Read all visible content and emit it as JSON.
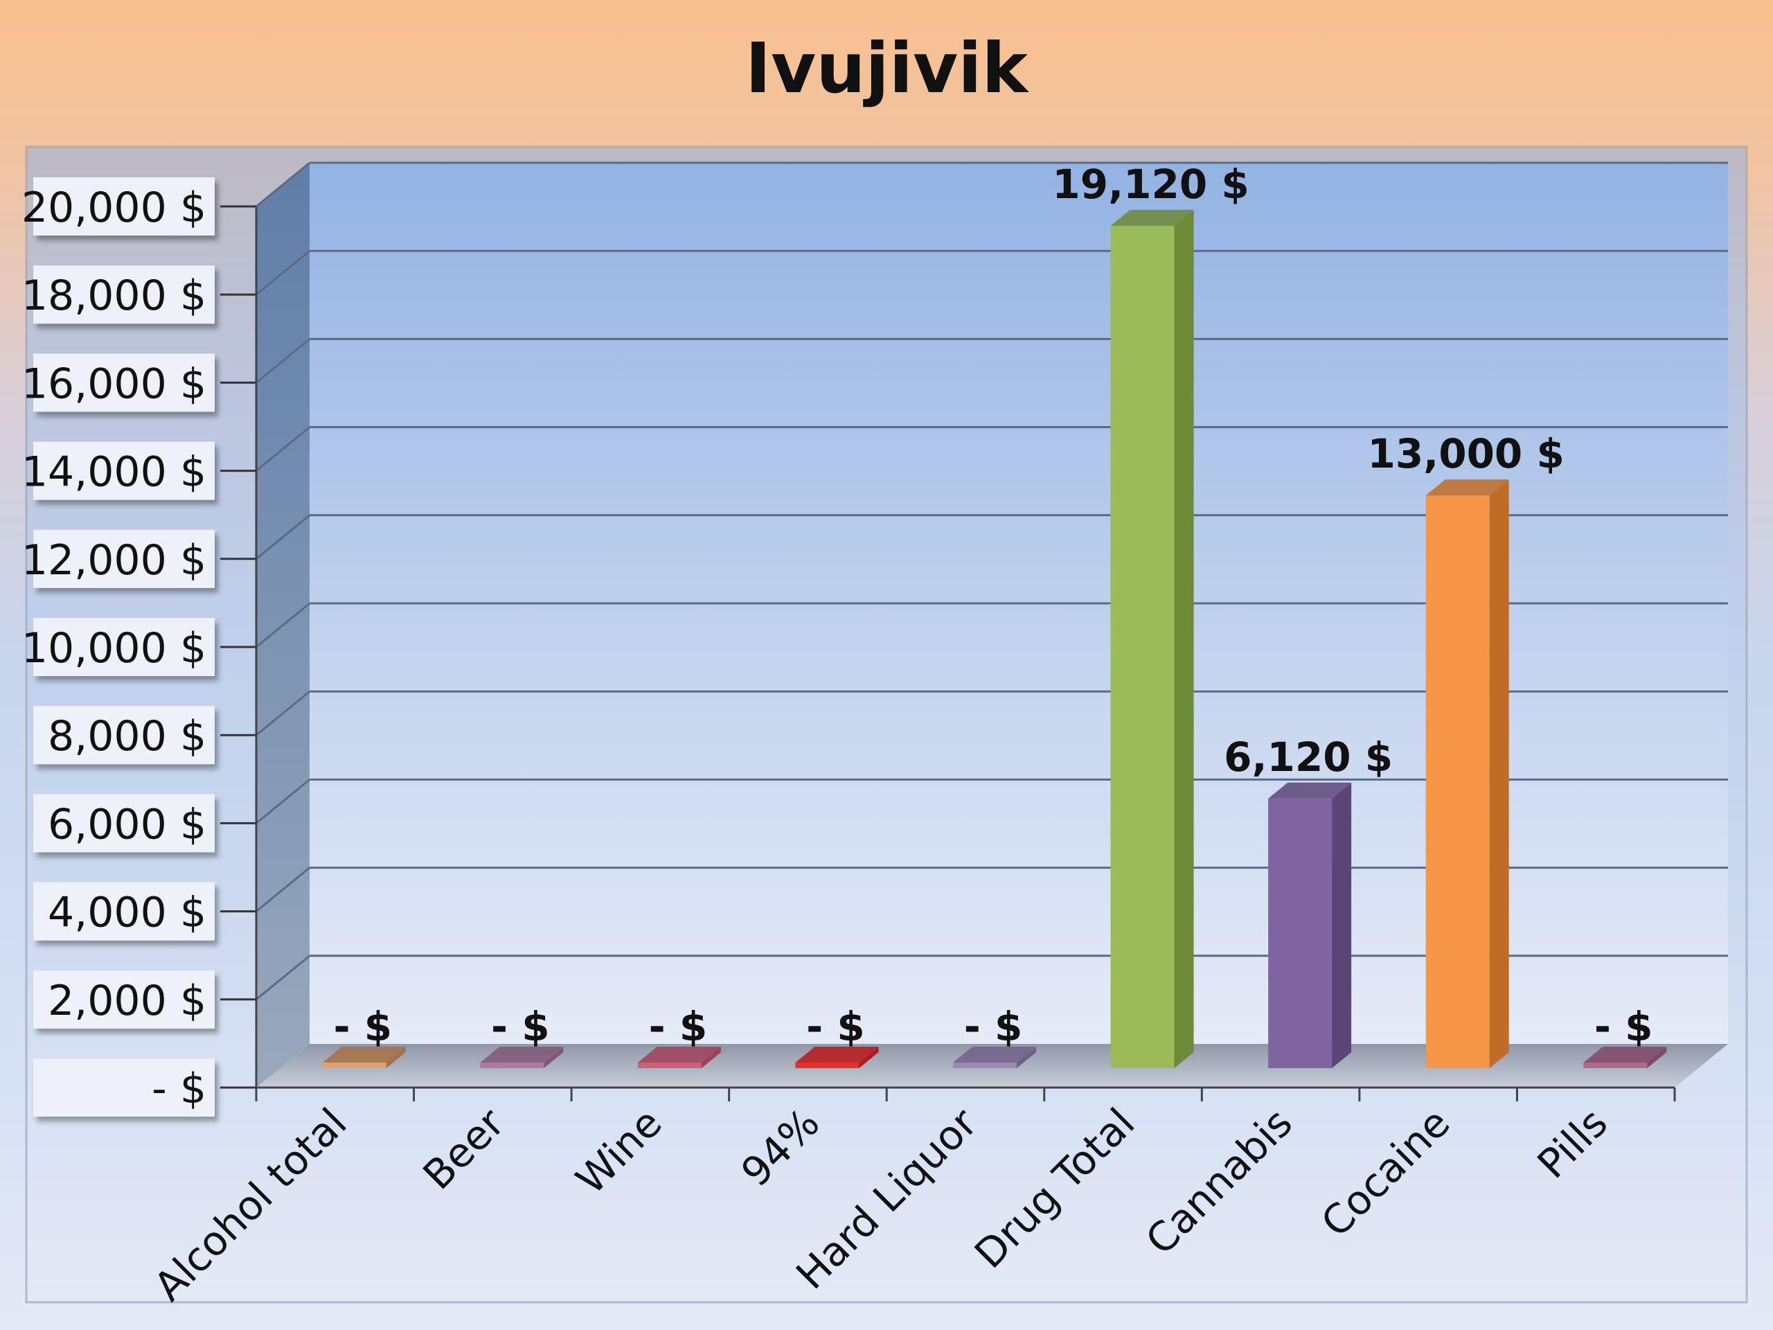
{
  "chart_data": {
    "type": "bar",
    "title": "Ivujivik",
    "categories": [
      "Alcohol total",
      "Beer",
      "Wine",
      "94%",
      "Hard Liquor",
      "Drug Total",
      "Cannabis",
      "Cocaine",
      "Pills"
    ],
    "values": [
      0,
      0,
      0,
      0,
      0,
      19120,
      6120,
      13000,
      0
    ],
    "data_labels": [
      "-   $",
      "-   $",
      "-   $",
      "-   $",
      "-   $",
      "19,120  $",
      "6,120  $",
      "13,000  $",
      "-   $"
    ],
    "bar_colors": [
      "#e0a070",
      "#b07aa0",
      "#d0607a",
      "#e8302a",
      "#9a8ab0",
      "#9bbb59",
      "#8064a2",
      "#f79646",
      "#b06a8a"
    ],
    "side_colors": [
      "#a87048",
      "#805878",
      "#a04058",
      "#b81818",
      "#706088",
      "#6d8a36",
      "#5a4578",
      "#c06c26",
      "#804868"
    ],
    "yticks": [
      "-   $",
      "2,000  $",
      "4,000  $",
      "6,000  $",
      "8,000  $",
      "10,000  $",
      "12,000  $",
      "14,000  $",
      "16,000  $",
      "18,000  $",
      "20,000  $"
    ],
    "ylim": [
      0,
      20000
    ],
    "xlabel": "",
    "ylabel": "",
    "grid": true,
    "legend": "none"
  }
}
